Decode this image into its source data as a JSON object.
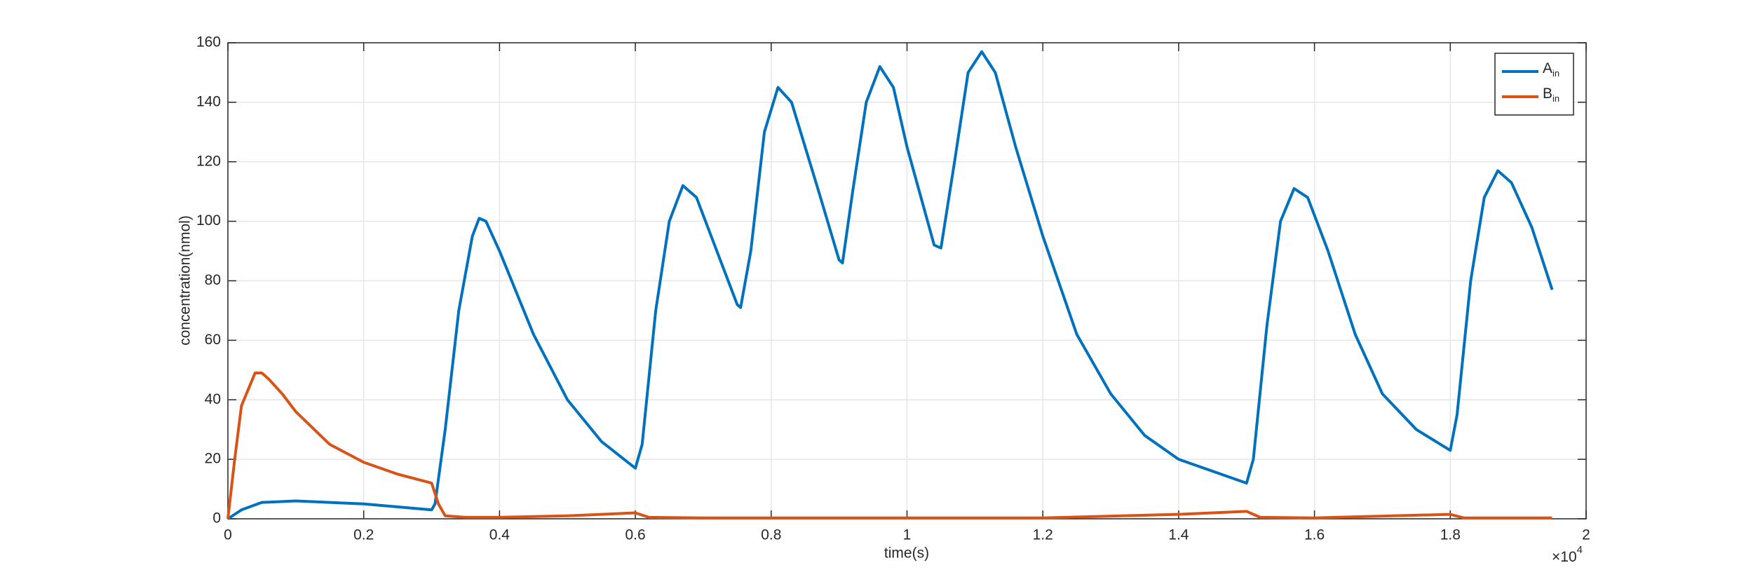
{
  "chart_data": {
    "type": "line",
    "x_label": "time(s)",
    "y_label": "concentration(nmol)",
    "x_multiplier": {
      "base": "×10",
      "exponent": "4"
    },
    "xlim": [
      0,
      2
    ],
    "xticks": [
      0,
      0.2,
      0.4,
      0.6,
      0.8,
      1,
      1.2,
      1.4,
      1.6,
      1.8,
      2
    ],
    "ylim": [
      0,
      160
    ],
    "yticks": [
      0,
      20,
      40,
      60,
      80,
      100,
      120,
      140,
      160
    ],
    "grid": true,
    "legend": "top-right",
    "series": [
      {
        "name": "A",
        "subscript": "in",
        "color": "#0072BD",
        "x": [
          0,
          0.02,
          0.05,
          0.1,
          0.2,
          0.3,
          0.305,
          0.32,
          0.34,
          0.36,
          0.37,
          0.38,
          0.4,
          0.45,
          0.5,
          0.55,
          0.6,
          0.61,
          0.63,
          0.65,
          0.67,
          0.69,
          0.72,
          0.75,
          0.755,
          0.77,
          0.79,
          0.81,
          0.83,
          0.87,
          0.9,
          0.905,
          0.92,
          0.94,
          0.96,
          0.98,
          1.0,
          1.04,
          1.05,
          1.07,
          1.09,
          1.11,
          1.13,
          1.16,
          1.2,
          1.25,
          1.3,
          1.35,
          1.4,
          1.45,
          1.5,
          1.51,
          1.53,
          1.55,
          1.57,
          1.59,
          1.62,
          1.66,
          1.7,
          1.75,
          1.8,
          1.81,
          1.83,
          1.85,
          1.87,
          1.89,
          1.92,
          1.95
        ],
        "values": [
          0,
          3,
          5.5,
          6,
          5,
          3,
          5,
          30,
          70,
          95,
          101,
          100,
          90,
          62,
          40,
          26,
          17,
          25,
          70,
          100,
          112,
          108,
          90,
          72,
          71,
          90,
          130,
          145,
          140,
          110,
          87,
          86,
          110,
          140,
          152,
          145,
          125,
          92,
          91,
          120,
          150,
          157,
          150,
          125,
          95,
          62,
          42,
          28,
          20,
          16,
          12,
          20,
          65,
          100,
          111,
          108,
          90,
          62,
          42,
          30,
          23,
          35,
          80,
          108,
          117,
          113,
          98,
          77
        ]
      },
      {
        "name": "B",
        "subscript": "in",
        "color": "#D95319",
        "x": [
          0,
          0.01,
          0.02,
          0.04,
          0.05,
          0.06,
          0.08,
          0.1,
          0.15,
          0.2,
          0.25,
          0.3,
          0.31,
          0.32,
          0.35,
          0.4,
          0.5,
          0.6,
          0.62,
          0.7,
          0.8,
          1.0,
          1.2,
          1.4,
          1.5,
          1.52,
          1.6,
          1.8,
          1.82,
          1.95
        ],
        "values": [
          0,
          20,
          38,
          49,
          49,
          47,
          42,
          36,
          25,
          19,
          15,
          12,
          5,
          1,
          0.5,
          0.5,
          1,
          2,
          0.5,
          0.3,
          0.3,
          0.3,
          0.3,
          1.5,
          2.5,
          0.5,
          0.3,
          1.5,
          0.3,
          0.3
        ]
      }
    ]
  }
}
